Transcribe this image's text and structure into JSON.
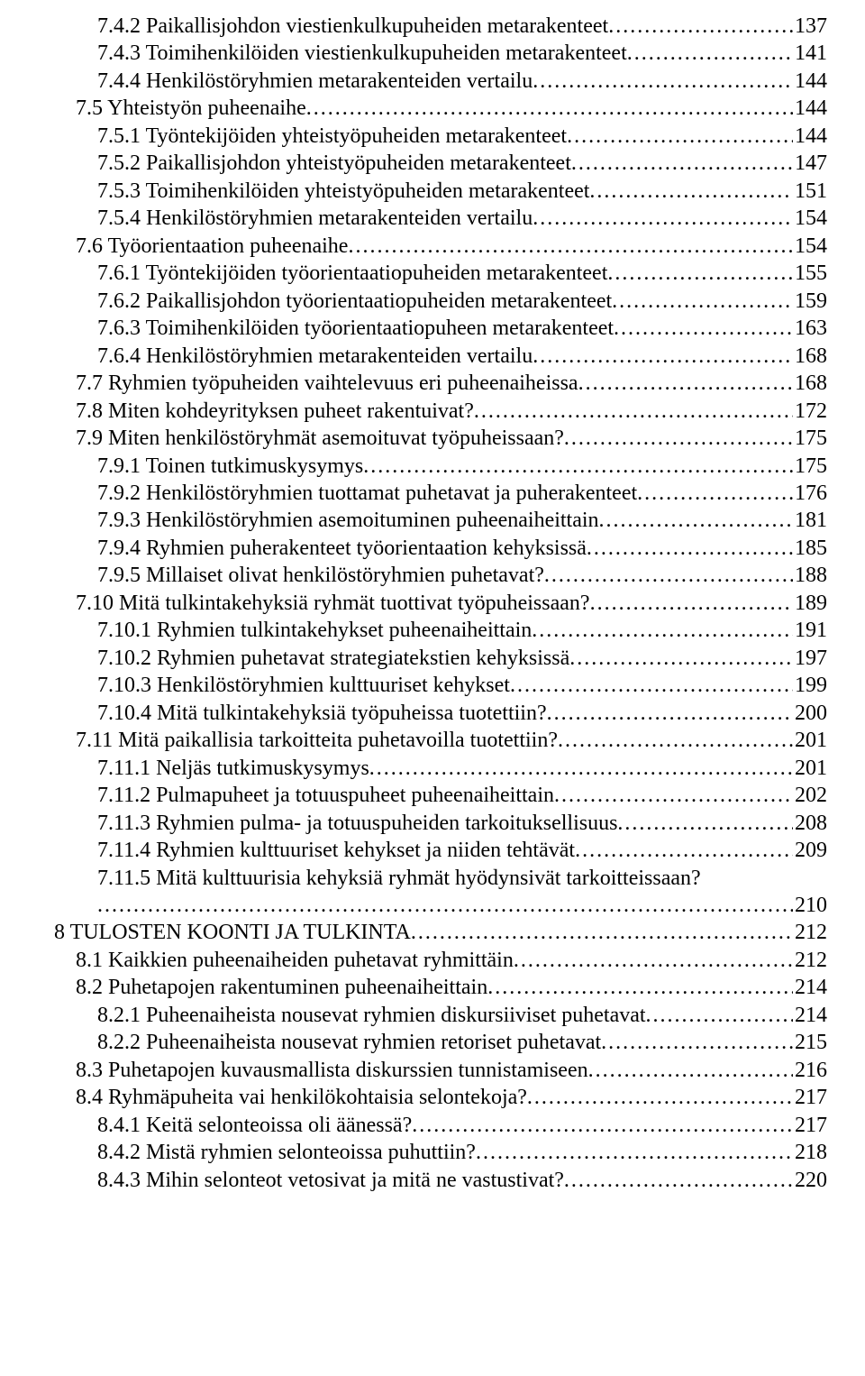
{
  "toc": [
    {
      "indent": 2,
      "title": "7.4.2 Paikallisjohdon viestienkulkupuheiden metarakenteet",
      "page": "137"
    },
    {
      "indent": 2,
      "title": "7.4.3 Toimihenkilöiden viestienkulkupuheiden metarakenteet",
      "page": "141"
    },
    {
      "indent": 2,
      "title": "7.4.4 Henkilöstöryhmien metarakenteiden vertailu",
      "page": "144"
    },
    {
      "indent": 1,
      "title": "7.5 Yhteistyön puheenaihe",
      "page": "144"
    },
    {
      "indent": 2,
      "title": "7.5.1 Työntekijöiden yhteistyöpuheiden metarakenteet",
      "page": "144"
    },
    {
      "indent": 2,
      "title": "7.5.2 Paikallisjohdon yhteistyöpuheiden metarakenteet",
      "page": "147"
    },
    {
      "indent": 2,
      "title": "7.5.3 Toimihenkilöiden yhteistyöpuheiden metarakenteet",
      "page": "151"
    },
    {
      "indent": 2,
      "title": "7.5.4 Henkilöstöryhmien metarakenteiden vertailu",
      "page": "154"
    },
    {
      "indent": 1,
      "title": "7.6 Työorientaation puheenaihe",
      "page": "154"
    },
    {
      "indent": 2,
      "title": "7.6.1 Työntekijöiden työorientaatiopuheiden metarakenteet",
      "page": "155"
    },
    {
      "indent": 2,
      "title": "7.6.2 Paikallisjohdon työorientaatiopuheiden metarakenteet",
      "page": "159"
    },
    {
      "indent": 2,
      "title": "7.6.3 Toimihenkilöiden työorientaatiopuheen metarakenteet",
      "page": "163"
    },
    {
      "indent": 2,
      "title": "7.6.4 Henkilöstöryhmien metarakenteiden vertailu",
      "page": "168"
    },
    {
      "indent": 1,
      "title": "7.7 Ryhmien työpuheiden vaihtelevuus eri puheenaiheissa",
      "page": "168"
    },
    {
      "indent": 1,
      "title": "7.8 Miten kohdeyrityksen puheet rakentuivat?",
      "page": "172"
    },
    {
      "indent": 1,
      "title": "7.9 Miten henkilöstöryhmät asemoituvat työpuheissaan?",
      "page": "175"
    },
    {
      "indent": 2,
      "title": "7.9.1 Toinen tutkimuskysymys",
      "page": "175"
    },
    {
      "indent": 2,
      "title": "7.9.2 Henkilöstöryhmien tuottamat puhetavat ja puherakenteet",
      "page": "176"
    },
    {
      "indent": 2,
      "title": "7.9.3 Henkilöstöryhmien asemoituminen puheenaiheittain",
      "page": "181"
    },
    {
      "indent": 2,
      "title": "7.9.4 Ryhmien puherakenteet työorientaation kehyksissä",
      "page": "185"
    },
    {
      "indent": 2,
      "title": "7.9.5 Millaiset olivat henkilöstöryhmien puhetavat?",
      "page": "188"
    },
    {
      "indent": 1,
      "title": "7.10 Mitä tulkintakehyksiä ryhmät tuottivat työpuheissaan?",
      "page": "189"
    },
    {
      "indent": 2,
      "title": "7.10.1 Ryhmien tulkintakehykset puheenaiheittain",
      "page": "191"
    },
    {
      "indent": 2,
      "title": "7.10.2 Ryhmien puhetavat strategiatekstien kehyksissä",
      "page": "197"
    },
    {
      "indent": 2,
      "title": "7.10.3 Henkilöstöryhmien kulttuuriset kehykset",
      "page": "199"
    },
    {
      "indent": 2,
      "title": "7.10.4 Mitä tulkintakehyksiä työpuheissa tuotettiin?",
      "page": "200"
    },
    {
      "indent": 1,
      "title": "7.11 Mitä paikallisia tarkoitteita puhetavoilla tuotettiin?",
      "page": "201"
    },
    {
      "indent": 2,
      "title": "7.11.1 Neljäs tutkimuskysymys",
      "page": "201"
    },
    {
      "indent": 2,
      "title": "7.11.2 Pulmapuheet ja totuuspuheet puheenaiheittain",
      "page": "202"
    },
    {
      "indent": 2,
      "title": "7.11.3 Ryhmien pulma- ja totuuspuheiden tarkoituksellisuus",
      "page": "208"
    },
    {
      "indent": 2,
      "title": "7.11.4 Ryhmien kulttuuriset kehykset ja niiden tehtävät",
      "page": "209"
    },
    {
      "indent": 2,
      "title": "7.11.5 Mitä kulttuurisia kehyksiä ryhmät hyödynsivät tarkoitteissaan?",
      "page": "",
      "noDotsInline": true
    },
    {
      "indent": 2,
      "title": "",
      "page": "210",
      "dotsOnly": true
    },
    {
      "indent": 0,
      "title": "8 TULOSTEN KOONTI JA TULKINTA",
      "page": "212"
    },
    {
      "indent": 1,
      "title": "8.1 Kaikkien puheenaiheiden puhetavat ryhmittäin",
      "page": "212"
    },
    {
      "indent": 1,
      "title": "8.2 Puhetapojen rakentuminen puheenaiheittain",
      "page": "214"
    },
    {
      "indent": 2,
      "title": "8.2.1 Puheenaiheista nousevat ryhmien diskursiiviset puhetavat",
      "page": "214"
    },
    {
      "indent": 2,
      "title": "8.2.2 Puheenaiheista nousevat ryhmien retoriset puhetavat",
      "page": "215"
    },
    {
      "indent": 1,
      "title": "8.3 Puhetapojen kuvausmallista diskurssien tunnistamiseen",
      "page": "216"
    },
    {
      "indent": 1,
      "title": "8.4 Ryhmäpuheita vai henkilökohtaisia selontekoja?",
      "page": "217"
    },
    {
      "indent": 2,
      "title": "8.4.1 Keitä selonteoissa oli äänessä?",
      "page": "217"
    },
    {
      "indent": 2,
      "title": "8.4.2 Mistä ryhmien selonteoissa puhuttiin?",
      "page": "218"
    },
    {
      "indent": 2,
      "title": "8.4.3 Mihin selonteot vetosivat ja mitä ne vastustivat?",
      "page": "220"
    }
  ]
}
